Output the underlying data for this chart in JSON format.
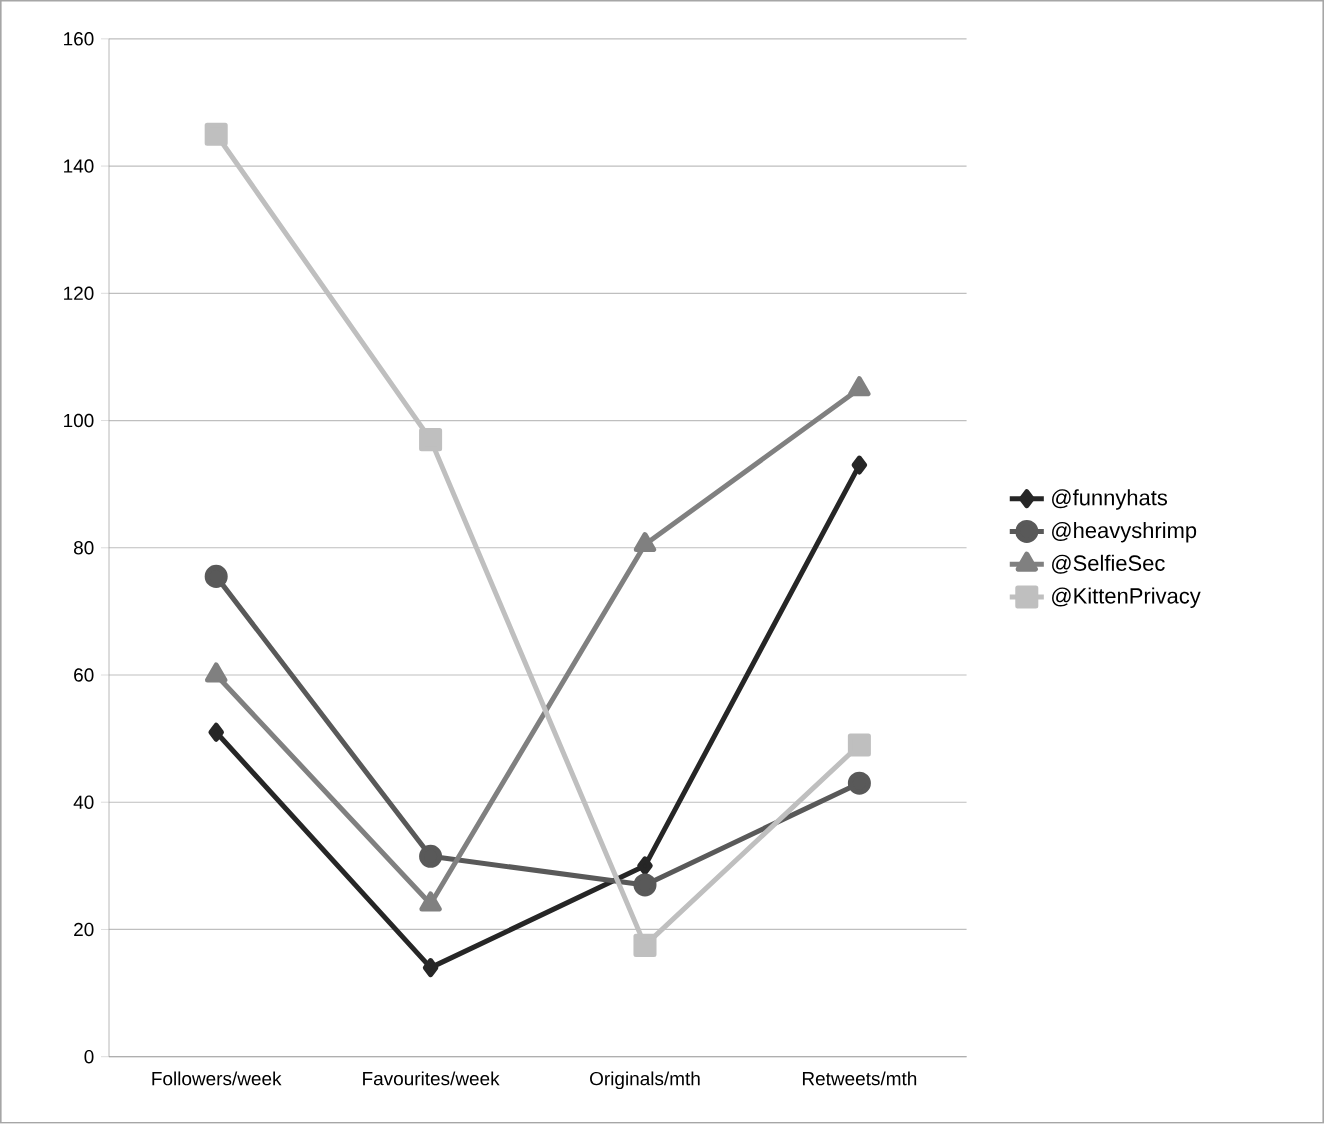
{
  "chart_data": {
    "type": "line",
    "categories": [
      "Followers/week",
      "Favourites/week",
      "Originals/mth",
      "Retweets/mth"
    ],
    "series": [
      {
        "name": "@funnyhats",
        "color": "#262626",
        "marker": "diamond",
        "values": [
          51,
          14,
          30,
          93
        ]
      },
      {
        "name": "@heavyshrimp",
        "color": "#595959",
        "marker": "circle",
        "values": [
          75.5,
          31.5,
          27,
          43
        ]
      },
      {
        "name": "@SelfieSec",
        "color": "#808080",
        "marker": "triangle",
        "values": [
          60,
          24,
          80.5,
          105
        ]
      },
      {
        "name": "@KittenPrivacy",
        "color": "#bfbfbf",
        "marker": "square",
        "values": [
          145,
          97,
          17.5,
          49
        ]
      }
    ],
    "ylim": [
      0,
      160
    ],
    "yticks": [
      0,
      20,
      40,
      60,
      80,
      100,
      120,
      140,
      160
    ],
    "grid": "y",
    "legend": "right",
    "line_style": "solid"
  }
}
